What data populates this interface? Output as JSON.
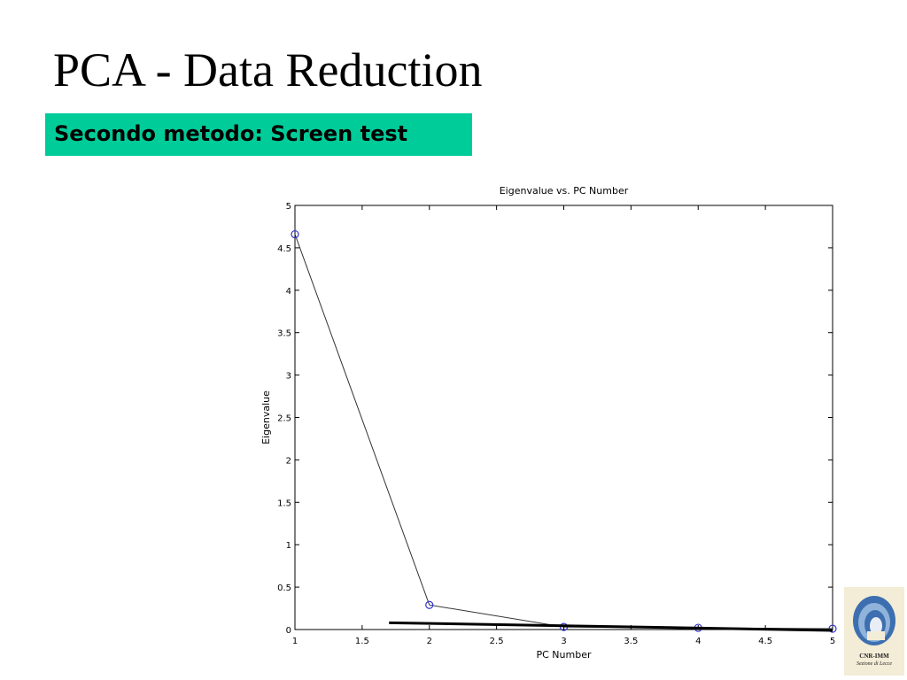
{
  "slide": {
    "title": "PCA - Data Reduction",
    "subtitle": "Secondo metodo: Screen test"
  },
  "chart_data": {
    "type": "line",
    "title": "Eigenvalue vs. PC Number",
    "xlabel": "PC Number",
    "ylabel": "Eigenvalue",
    "xlim": [
      1,
      5
    ],
    "ylim": [
      0,
      5
    ],
    "xticks": [
      "1",
      "1.5",
      "2",
      "2.5",
      "3",
      "3.5",
      "4",
      "4.5",
      "5"
    ],
    "yticks": [
      "0",
      "0.5",
      "1",
      "1.5",
      "2",
      "2.5",
      "3",
      "3.5",
      "4",
      "4.5",
      "5"
    ],
    "series": [
      {
        "x": [
          1,
          2,
          3,
          4,
          5
        ],
        "y": [
          4.66,
          0.29,
          0.03,
          0.02,
          0.01
        ],
        "marker": "circle",
        "color": "#3333cc"
      }
    ],
    "annotation_line": {
      "x": [
        1.7,
        5
      ],
      "y": [
        0.08,
        -0.01
      ],
      "color": "#000000"
    },
    "grid": false
  },
  "logo": {
    "line1": "CNR-IMM",
    "line2": "Sezione di Lecce"
  },
  "colors": {
    "subtitle_bg": "#00cc99",
    "marker": "#3333cc"
  }
}
